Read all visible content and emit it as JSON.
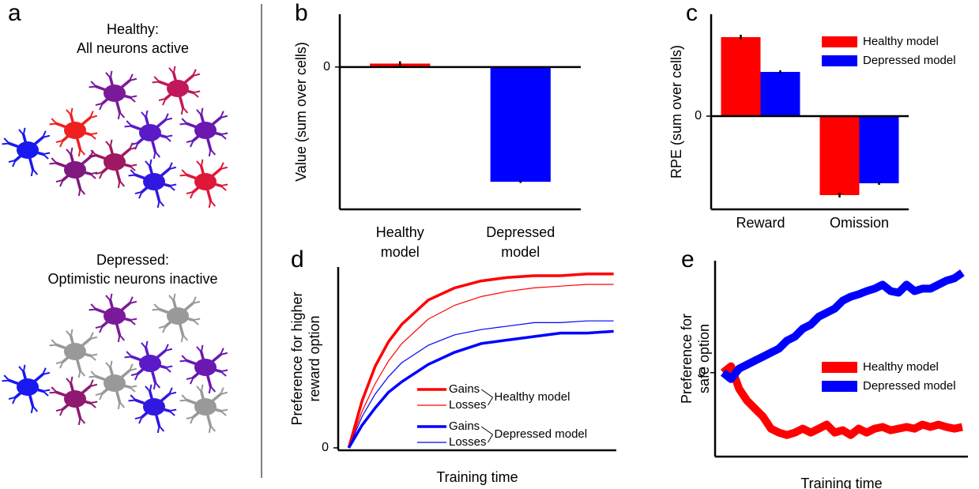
{
  "illustration": {
    "panel": "a",
    "healthy": {
      "title": "Healthy:",
      "subtitle": "All neurons active"
    },
    "depressed": {
      "title": "Depressed:",
      "subtitle": "Optimistic neurons inactive"
    }
  },
  "chart_data": [
    {
      "panel": "b",
      "type": "bar",
      "ylabel": "Value (sum over cells)",
      "categories": [
        [
          "Healthy",
          "model"
        ],
        [
          "Depressed",
          "model"
        ]
      ],
      "values": [
        0.03,
        -1.0
      ],
      "errors": [
        0.02,
        0.01
      ],
      "colors": [
        "#ff0000",
        "#0000ff"
      ],
      "ylim": [
        -1.24,
        0.46
      ],
      "yticks": [
        0
      ],
      "zero_line": true
    },
    {
      "panel": "c",
      "type": "bar",
      "ylabel": "RPE (sum over cells)",
      "categories": [
        "Reward",
        "Omission"
      ],
      "series": [
        {
          "name": "Healthy model",
          "color": "#ff0000",
          "values": [
            1.0,
            -1.0
          ],
          "errors": [
            0.03,
            0.03
          ]
        },
        {
          "name": "Depressed model",
          "color": "#0000ff",
          "values": [
            0.56,
            -0.85
          ],
          "errors": [
            0.02,
            0.02
          ]
        }
      ],
      "ylim": [
        -1.18,
        1.29
      ],
      "yticks": [
        0
      ],
      "zero_line": true,
      "legend": "upper right"
    },
    {
      "panel": "d",
      "type": "line",
      "ylabel": [
        "Preference for higher",
        "reward option"
      ],
      "xlabel": "Training time",
      "x": [
        0,
        0.5,
        1,
        1.5,
        2,
        3,
        4,
        5,
        6,
        7,
        8,
        9,
        10
      ],
      "xlim": [
        -0.4,
        10.1
      ],
      "ylim": [
        -0.014,
        1.04
      ],
      "yticks": [
        0
      ],
      "legend": "lower left",
      "groups": [
        {
          "name": "Healthy model",
          "color": "#ff0000",
          "series": [
            {
              "name": "Gains",
              "width": 3.5,
              "values": [
                0,
                0.27,
                0.47,
                0.61,
                0.71,
                0.85,
                0.92,
                0.96,
                0.98,
                0.99,
                0.99,
                1.0,
                1.0
              ]
            },
            {
              "name": "Losses",
              "width": 1.2,
              "values": [
                0,
                0.21,
                0.37,
                0.5,
                0.6,
                0.74,
                0.82,
                0.87,
                0.9,
                0.92,
                0.93,
                0.94,
                0.94
              ]
            }
          ]
        },
        {
          "name": "Depressed model",
          "color": "#0000ff",
          "series": [
            {
              "name": "Gains",
              "width": 3.5,
              "values": [
                0,
                0.13,
                0.23,
                0.32,
                0.38,
                0.48,
                0.55,
                0.6,
                0.62,
                0.64,
                0.66,
                0.66,
                0.67
              ]
            },
            {
              "name": "Losses",
              "width": 1.2,
              "values": [
                0,
                0.18,
                0.31,
                0.41,
                0.49,
                0.59,
                0.65,
                0.68,
                0.7,
                0.72,
                0.72,
                0.73,
                0.73
              ]
            }
          ]
        }
      ]
    },
    {
      "panel": "e",
      "type": "line",
      "ylabel": [
        "Preference for",
        "safe option"
      ],
      "xlabel": "Training time",
      "x": [
        0,
        1,
        2,
        3,
        4,
        5,
        6,
        7,
        8,
        9,
        10,
        11,
        12,
        13,
        14,
        15,
        16,
        17,
        18,
        19,
        20,
        21,
        22,
        23,
        24,
        25,
        26,
        27,
        28,
        29,
        30
      ],
      "xlim": [
        -1,
        30.7
      ],
      "ylim": [
        -1.05,
        1.4
      ],
      "yticks": [
        0
      ],
      "legend": "center right",
      "series": [
        {
          "name": "Healthy model",
          "color": "#ff0000",
          "width": 10,
          "values": [
            0,
            0.08,
            -0.2,
            -0.35,
            -0.45,
            -0.55,
            -0.7,
            -0.75,
            -0.78,
            -0.75,
            -0.7,
            -0.75,
            -0.7,
            -0.65,
            -0.75,
            -0.72,
            -0.78,
            -0.7,
            -0.75,
            -0.7,
            -0.68,
            -0.72,
            -0.7,
            -0.68,
            -0.7,
            -0.65,
            -0.68,
            -0.65,
            -0.68,
            -0.7,
            -0.68
          ]
        },
        {
          "name": "Depressed model",
          "color": "#0000ff",
          "width": 10,
          "values": [
            0,
            -0.08,
            0.05,
            0.1,
            0.15,
            0.2,
            0.25,
            0.3,
            0.4,
            0.45,
            0.55,
            0.6,
            0.7,
            0.75,
            0.8,
            0.9,
            0.95,
            0.98,
            1.02,
            1.05,
            1.1,
            1.02,
            1.0,
            1.1,
            1.02,
            1.05,
            1.05,
            1.1,
            1.15,
            1.18,
            1.25
          ]
        }
      ]
    }
  ]
}
